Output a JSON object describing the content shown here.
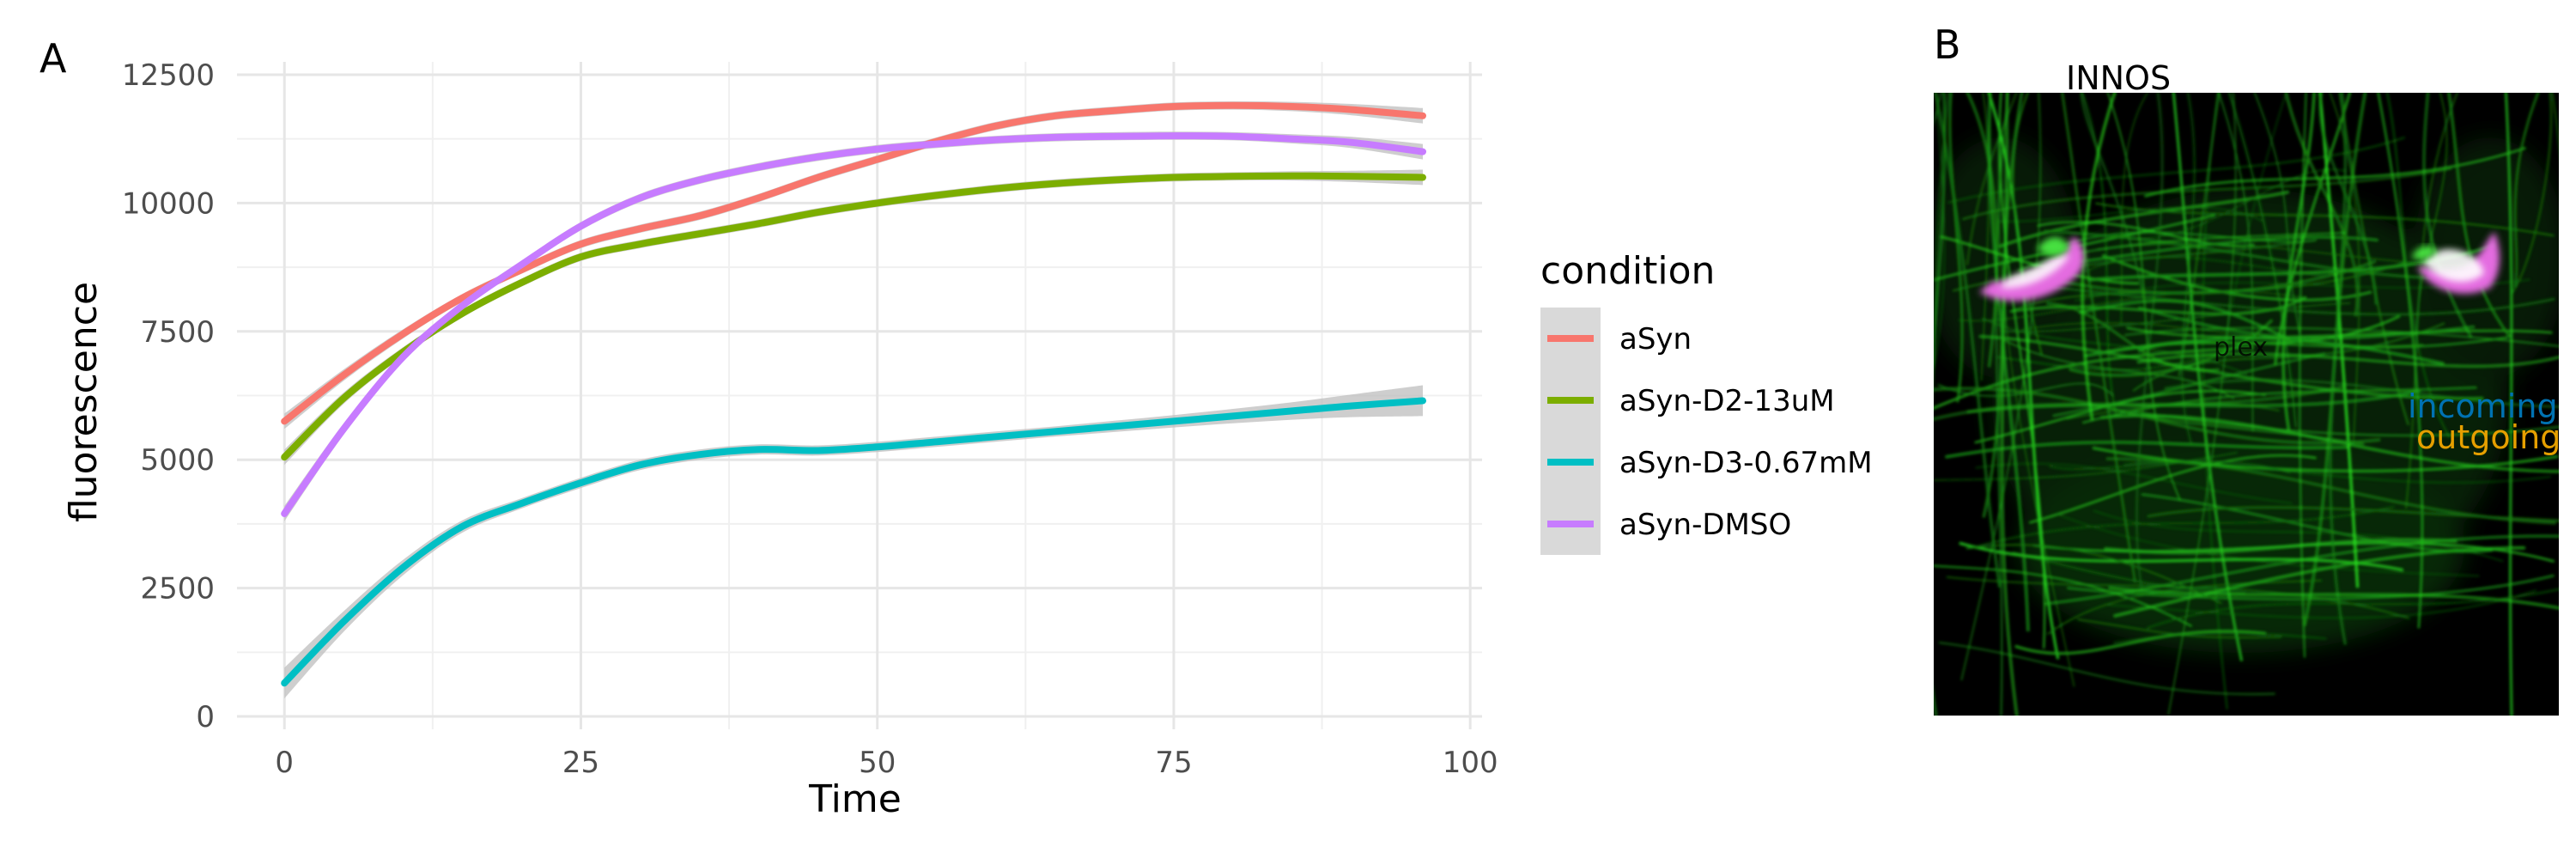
{
  "panels": {
    "a": {
      "tag": "A"
    },
    "b": {
      "tag": "B"
    }
  },
  "chart_data": {
    "type": "line",
    "x_label": "Time",
    "y_label": "fluorescence",
    "xlim": [
      -4,
      101
    ],
    "ylim": [
      -250,
      12750
    ],
    "x_ticks": [
      0,
      25,
      50,
      75,
      100
    ],
    "y_ticks": [
      0,
      2500,
      5000,
      7500,
      10000,
      12500
    ],
    "grid": true,
    "confidence_band": true,
    "band_color": "#bdbdbd",
    "legend": {
      "title": "condition",
      "position": "right"
    },
    "series": [
      {
        "name": "aSyn",
        "color": "#F8766D",
        "x": [
          0,
          5,
          10,
          15,
          20,
          25,
          30,
          35,
          40,
          45,
          50,
          55,
          60,
          65,
          70,
          75,
          80,
          85,
          90,
          96
        ],
        "y": [
          5750,
          6650,
          7450,
          8150,
          8700,
          9200,
          9500,
          9750,
          10100,
          10500,
          10850,
          11200,
          11500,
          11700,
          11800,
          11880,
          11900,
          11880,
          11820,
          11700
        ],
        "band": [
          150,
          110,
          90,
          80,
          80,
          80,
          80,
          80,
          80,
          80,
          80,
          80,
          80,
          80,
          80,
          80,
          80,
          90,
          110,
          150
        ]
      },
      {
        "name": "aSyn-D2-13uM",
        "color": "#7CAE00",
        "x": [
          0,
          5,
          10,
          15,
          20,
          25,
          30,
          35,
          40,
          45,
          50,
          55,
          60,
          65,
          70,
          75,
          80,
          85,
          90,
          96
        ],
        "y": [
          5050,
          6200,
          7100,
          7850,
          8450,
          8950,
          9200,
          9400,
          9600,
          9820,
          10000,
          10150,
          10280,
          10380,
          10450,
          10500,
          10520,
          10530,
          10520,
          10500
        ],
        "band": [
          150,
          110,
          90,
          80,
          80,
          80,
          80,
          80,
          80,
          80,
          80,
          80,
          80,
          80,
          80,
          80,
          80,
          90,
          110,
          150
        ]
      },
      {
        "name": "aSyn-D3-0.67mM",
        "color": "#00BFC4",
        "x": [
          0,
          5,
          10,
          15,
          20,
          25,
          30,
          35,
          40,
          45,
          50,
          55,
          60,
          65,
          70,
          75,
          80,
          85,
          90,
          96
        ],
        "y": [
          650,
          1850,
          2900,
          3700,
          4150,
          4550,
          4900,
          5100,
          5200,
          5180,
          5250,
          5350,
          5450,
          5550,
          5650,
          5750,
          5850,
          5950,
          6050,
          6150
        ],
        "band": [
          300,
          200,
          150,
          120,
          100,
          100,
          100,
          100,
          100,
          100,
          100,
          100,
          100,
          100,
          110,
          120,
          140,
          170,
          220,
          300
        ]
      },
      {
        "name": "aSyn-DMSO",
        "color": "#C77CFF",
        "x": [
          0,
          5,
          10,
          15,
          20,
          25,
          30,
          35,
          40,
          45,
          50,
          55,
          60,
          65,
          70,
          75,
          80,
          85,
          90,
          96
        ],
        "y": [
          3950,
          5600,
          7000,
          8000,
          8800,
          9550,
          10100,
          10450,
          10700,
          10900,
          11050,
          11150,
          11230,
          11280,
          11300,
          11310,
          11300,
          11250,
          11180,
          11000
        ],
        "band": [
          150,
          110,
          90,
          80,
          80,
          80,
          80,
          80,
          80,
          80,
          80,
          80,
          80,
          80,
          80,
          80,
          80,
          90,
          110,
          150
        ]
      }
    ]
  },
  "micrograph": {
    "annotations": {
      "top": "INNOS",
      "center": "plex",
      "incoming": "incoming",
      "outgoing": "outgoing"
    },
    "colors": {
      "background": "#000000",
      "fibers": "#22b31c",
      "soma": "#e46ce0",
      "incoming": "#0072B2",
      "outgoing": "#E69F00",
      "annotation": "#000000"
    }
  }
}
